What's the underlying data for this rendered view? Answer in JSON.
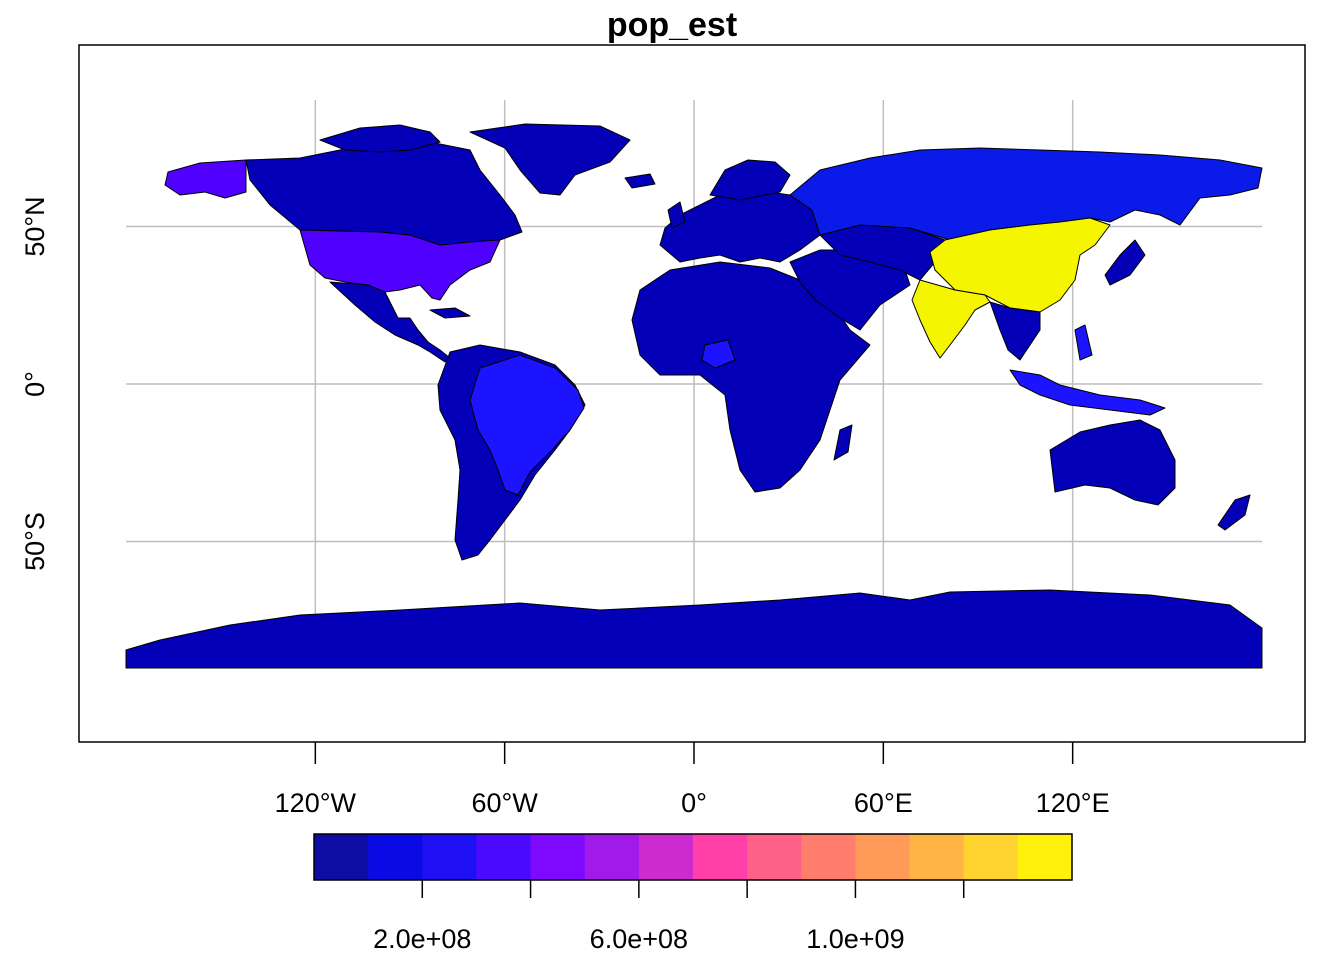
{
  "title": "pop_est",
  "map": {
    "projection": "equirectangular",
    "graticule": true,
    "lon_ticks": [
      {
        "value": -120,
        "label": "120°W"
      },
      {
        "value": -60,
        "label": "60°W"
      },
      {
        "value": 0,
        "label": "0°"
      },
      {
        "value": 60,
        "label": "60°E"
      },
      {
        "value": 120,
        "label": "120°E"
      }
    ],
    "lat_ticks": [
      {
        "value": 50,
        "label": "50°N"
      },
      {
        "value": 0,
        "label": "0°"
      },
      {
        "value": -50,
        "label": "50°S"
      }
    ],
    "colors": {
      "ocean": "#ffffff",
      "graticule": "#bebebe",
      "border": "#000000",
      "china": "#f5f500",
      "india": "#f5f500",
      "usa": "#5000ff",
      "alaska": "#5000ff",
      "brazil": "#1c14ff",
      "russia": "#0a1ae8",
      "other": "#0400b8"
    }
  },
  "legend": {
    "variable": "pop_est",
    "range": [
      0,
      1400000000
    ],
    "colors": [
      "#0d0da6",
      "#0a0ae4",
      "#1e10f2",
      "#4b0aff",
      "#7d0aff",
      "#a01ae8",
      "#cd2ad0",
      "#ff40a8",
      "#ff6088",
      "#ff7d6d",
      "#ff9a58",
      "#ffb444",
      "#ffd430",
      "#fff10c"
    ],
    "ticks": [
      {
        "value": 200000000,
        "label": "2.0e+08"
      },
      {
        "value": 400000000,
        "label": ""
      },
      {
        "value": 600000000,
        "label": "6.0e+08"
      },
      {
        "value": 800000000,
        "label": ""
      },
      {
        "value": 1000000000,
        "label": "1.0e+09"
      },
      {
        "value": 1200000000,
        "label": ""
      }
    ]
  }
}
